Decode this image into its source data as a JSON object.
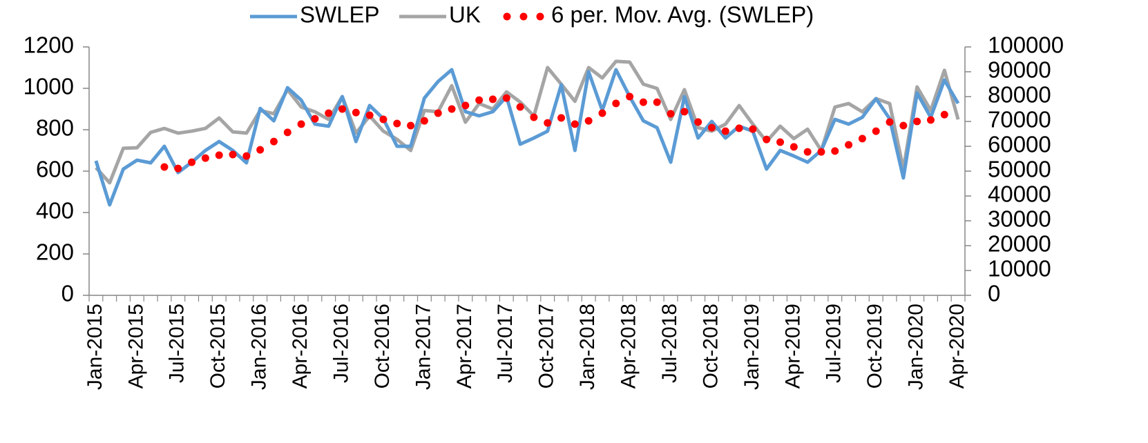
{
  "chart_data": {
    "type": "line",
    "categories": [
      "Jan-2015",
      null,
      null,
      "Apr-2015",
      null,
      null,
      "Jul-2015",
      null,
      null,
      "Oct-2015",
      null,
      null,
      "Jan-2016",
      null,
      null,
      "Apr-2016",
      null,
      null,
      "Jul-2016",
      null,
      null,
      "Oct-2016",
      null,
      null,
      "Jan-2017",
      null,
      null,
      "Apr-2017",
      null,
      null,
      "Jul-2017",
      null,
      null,
      "Oct-2017",
      null,
      null,
      "Jan-2018",
      null,
      null,
      "Apr-2018",
      null,
      null,
      "Jul-2018",
      null,
      null,
      "Oct-2018",
      null,
      null,
      "Jan-2019",
      null,
      null,
      "Apr-2019",
      null,
      null,
      "Jul-2019",
      null,
      null,
      "Oct-2019",
      null,
      null,
      "Jan-2020",
      null,
      null,
      "Apr-2020"
    ],
    "series": [
      {
        "name": "SWLEP",
        "color": "#5b9bd5",
        "line_style": "solid",
        "axis": "y",
        "values": [
          650,
          437,
          610,
          653,
          640,
          720,
          593,
          643,
          700,
          743,
          700,
          640,
          903,
          843,
          1003,
          943,
          827,
          817,
          960,
          743,
          917,
          853,
          720,
          720,
          953,
          1033,
          1090,
          887,
          867,
          887,
          960,
          730,
          760,
          793,
          1017,
          700,
          1080,
          893,
          1090,
          960,
          843,
          810,
          643,
          960,
          760,
          840,
          760,
          817,
          793,
          610,
          700,
          673,
          643,
          700,
          850,
          827,
          860,
          950,
          853,
          567,
          977,
          860,
          1040,
          927
        ]
      },
      {
        "name": "UK",
        "color": "#a5a5a5",
        "line_style": "solid",
        "axis": "y2",
        "values": [
          51400,
          45300,
          59200,
          59400,
          65600,
          67200,
          65300,
          66100,
          67200,
          71400,
          65800,
          65300,
          74400,
          73100,
          82800,
          75800,
          73900,
          70800,
          80000,
          65300,
          72200,
          66100,
          62800,
          58300,
          74400,
          73900,
          84400,
          69700,
          77200,
          75000,
          81900,
          77800,
          72200,
          91700,
          85000,
          78100,
          91700,
          87500,
          94200,
          93900,
          85000,
          83300,
          70800,
          82800,
          67500,
          66100,
          68900,
          76400,
          68900,
          61900,
          68100,
          63100,
          66900,
          58300,
          75800,
          77200,
          73900,
          79200,
          77200,
          50800,
          83900,
          74400,
          90600,
          70800
        ]
      },
      {
        "name": "6 per. Mov. Avg. (SWLEP)",
        "color": "#ff0000",
        "line_style": "dotted",
        "axis": "y",
        "values": [
          null,
          null,
          null,
          null,
          null,
          620,
          613,
          643,
          663,
          677,
          680,
          673,
          703,
          743,
          787,
          827,
          853,
          880,
          900,
          883,
          870,
          850,
          830,
          820,
          843,
          880,
          900,
          917,
          943,
          947,
          953,
          910,
          860,
          833,
          857,
          827,
          843,
          880,
          927,
          960,
          933,
          933,
          877,
          887,
          837,
          810,
          793,
          807,
          803,
          753,
          740,
          717,
          693,
          693,
          697,
          727,
          757,
          793,
          837,
          820,
          840,
          847,
          873,
          null
        ]
      }
    ],
    "ylim": [
      0,
      1200
    ],
    "yticks": [
      0,
      200,
      400,
      600,
      800,
      1000,
      1200
    ],
    "y2lim": [
      0,
      100000
    ],
    "y2ticks": [
      0,
      10000,
      20000,
      30000,
      40000,
      50000,
      60000,
      70000,
      80000,
      90000,
      100000
    ],
    "grid": false,
    "legend": "top"
  }
}
